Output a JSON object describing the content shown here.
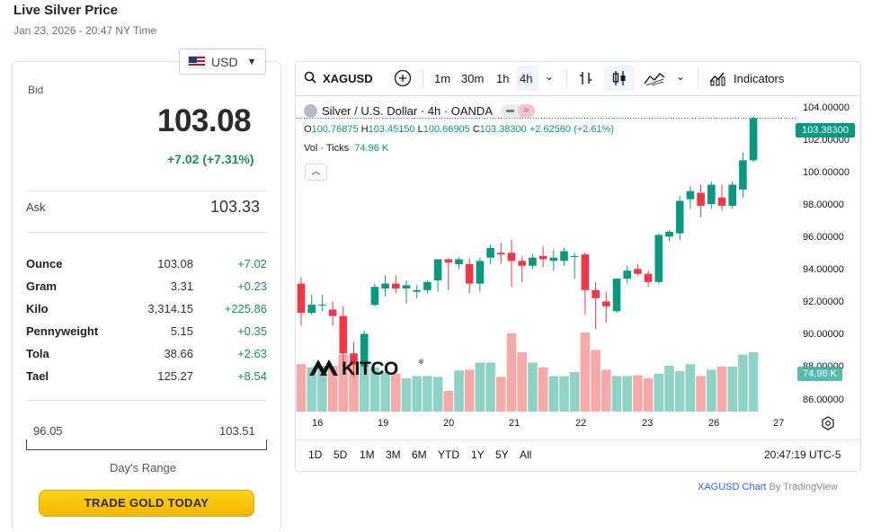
{
  "header": {
    "title": "Live Silver Price",
    "timestamp": "Jan 23, 2026 - 20:47 NY Time"
  },
  "currency": {
    "selected": "USD"
  },
  "quote": {
    "bid_label": "Bid",
    "bid": "103.08",
    "change": "+7.02 (+7.31%)",
    "ask_label": "Ask",
    "ask": "103.33"
  },
  "units": [
    {
      "unit": "Ounce",
      "price": "103.08",
      "change": "+7.02"
    },
    {
      "unit": "Gram",
      "price": "3.31",
      "change": "+0.23"
    },
    {
      "unit": "Kilo",
      "price": "3,314.15",
      "change": "+225.86"
    },
    {
      "unit": "Pennyweight",
      "price": "5.15",
      "change": "+0.35"
    },
    {
      "unit": "Tola",
      "price": "38.66",
      "change": "+2.63"
    },
    {
      "unit": "Tael",
      "price": "125.27",
      "change": "+8.54"
    }
  ],
  "day_range": {
    "low": "96.05",
    "high": "103.51",
    "label": "Day's Range"
  },
  "cta": {
    "label": "TRADE GOLD TODAY"
  },
  "chart_widget": {
    "symbol": "XAGUSD",
    "timeframes": [
      "1m",
      "30m",
      "1h",
      "4h"
    ],
    "active_timeframe": "4h",
    "indicators_label": "Indicators",
    "title_line": "Silver / U.S. Dollar · 4h · OANDA",
    "ohlc": {
      "o_label": "O",
      "o": "100.76875",
      "h_label": "H",
      "h": "103.45150",
      "l_label": "L",
      "l": "100.66905",
      "c_label": "C",
      "c": "103.38300",
      "change": "+2.62560 (+2.61%)"
    },
    "volume_label": "Vol · Ticks",
    "volume_value": "74.96 K",
    "last_price": "103.38300",
    "volume_badge": "74.96 K",
    "ranges": [
      "1D",
      "5D",
      "1M",
      "3M",
      "6M",
      "YTD",
      "1Y",
      "5Y",
      "All"
    ],
    "clock": "20:47:19 UTC-5",
    "watermark": "KITCO",
    "attribution_link": "XAGUSD Chart",
    "attribution_text": " By TradingView",
    "up_color": "#089981",
    "down_color": "#f23645"
  },
  "chart_data": {
    "type": "candlestick",
    "price_ticks": [
      "104.00000",
      "102.00000",
      "100.00000",
      "98.00000",
      "96.00000",
      "94.00000",
      "92.00000",
      "90.00000",
      "88.00000",
      "86.00000"
    ],
    "date_ticks": [
      "16",
      "19",
      "20",
      "21",
      "22",
      "23",
      "26",
      "27"
    ],
    "ylim": [
      85.2,
      104.7
    ],
    "candles": [
      {
        "o": 93.2,
        "h": 93.6,
        "l": 90.6,
        "c": 91.4,
        "v": 60
      },
      {
        "o": 91.4,
        "h": 92.5,
        "l": 91.3,
        "c": 91.9,
        "v": 56
      },
      {
        "o": 91.9,
        "h": 92.5,
        "l": 91.5,
        "c": 91.9,
        "v": 58
      },
      {
        "o": 91.6,
        "h": 92.1,
        "l": 90.6,
        "c": 91.2,
        "v": 58
      },
      {
        "o": 91.2,
        "h": 91.8,
        "l": 88.0,
        "c": 88.9,
        "v": 72
      },
      {
        "o": 88.9,
        "h": 89.6,
        "l": 87.4,
        "c": 88.2,
        "v": 65
      },
      {
        "o": 88.1,
        "h": 90.3,
        "l": 87.9,
        "c": 90.1,
        "v": 58
      },
      {
        "o": 91.9,
        "h": 93.2,
        "l": 91.8,
        "c": 93.0,
        "v": 56
      },
      {
        "o": 92.9,
        "h": 93.7,
        "l": 92.4,
        "c": 93.2,
        "v": 50
      },
      {
        "o": 93.2,
        "h": 93.7,
        "l": 92.6,
        "c": 92.9,
        "v": 48
      },
      {
        "o": 92.9,
        "h": 93.4,
        "l": 92.0,
        "c": 93.1,
        "v": 42
      },
      {
        "o": 92.7,
        "h": 93.1,
        "l": 92.3,
        "c": 92.8,
        "v": 45
      },
      {
        "o": 92.8,
        "h": 93.4,
        "l": 92.6,
        "c": 93.3,
        "v": 45
      },
      {
        "o": 93.4,
        "h": 94.6,
        "l": 92.7,
        "c": 94.7,
        "v": 44
      },
      {
        "o": 94.7,
        "h": 94.8,
        "l": 92.8,
        "c": 94.5,
        "v": 26
      },
      {
        "o": 94.4,
        "h": 94.8,
        "l": 94.1,
        "c": 94.7,
        "v": 52
      },
      {
        "o": 94.4,
        "h": 94.8,
        "l": 92.6,
        "c": 93.2,
        "v": 53
      },
      {
        "o": 93.2,
        "h": 94.8,
        "l": 92.7,
        "c": 94.6,
        "v": 62
      },
      {
        "o": 94.8,
        "h": 95.6,
        "l": 94.4,
        "c": 95.4,
        "v": 62
      },
      {
        "o": 95.1,
        "h": 95.7,
        "l": 94.4,
        "c": 95.0,
        "v": 44
      },
      {
        "o": 95.1,
        "h": 95.9,
        "l": 93.0,
        "c": 94.6,
        "v": 99
      },
      {
        "o": 94.6,
        "h": 94.9,
        "l": 93.3,
        "c": 94.3,
        "v": 75
      },
      {
        "o": 94.3,
        "h": 95.0,
        "l": 94.1,
        "c": 94.8,
        "v": 62
      },
      {
        "o": 94.9,
        "h": 95.5,
        "l": 94.2,
        "c": 94.7,
        "v": 56
      },
      {
        "o": 94.6,
        "h": 95.3,
        "l": 94.0,
        "c": 94.8,
        "v": 45
      },
      {
        "o": 94.6,
        "h": 95.4,
        "l": 94.3,
        "c": 95.2,
        "v": 45
      },
      {
        "o": 94.9,
        "h": 95.1,
        "l": 93.5,
        "c": 94.9,
        "v": 50
      },
      {
        "o": 95.0,
        "h": 95.1,
        "l": 91.3,
        "c": 92.8,
        "v": 100
      },
      {
        "o": 92.8,
        "h": 93.3,
        "l": 90.4,
        "c": 92.3,
        "v": 78
      },
      {
        "o": 92.1,
        "h": 92.7,
        "l": 90.8,
        "c": 91.8,
        "v": 53
      },
      {
        "o": 91.5,
        "h": 93.5,
        "l": 91.4,
        "c": 93.5,
        "v": 45
      },
      {
        "o": 93.5,
        "h": 94.3,
        "l": 93.2,
        "c": 94.0,
        "v": 45
      },
      {
        "o": 94.1,
        "h": 94.4,
        "l": 93.7,
        "c": 93.8,
        "v": 46
      },
      {
        "o": 93.8,
        "h": 94.0,
        "l": 93.0,
        "c": 93.3,
        "v": 42
      },
      {
        "o": 93.3,
        "h": 96.3,
        "l": 93.2,
        "c": 96.2,
        "v": 48
      },
      {
        "o": 96.1,
        "h": 96.5,
        "l": 95.8,
        "c": 96.4,
        "v": 58
      },
      {
        "o": 96.3,
        "h": 98.6,
        "l": 95.9,
        "c": 98.3,
        "v": 51
      },
      {
        "o": 98.4,
        "h": 99.2,
        "l": 97.8,
        "c": 98.9,
        "v": 60
      },
      {
        "o": 98.8,
        "h": 99.3,
        "l": 97.3,
        "c": 98.0,
        "v": 45
      },
      {
        "o": 98.1,
        "h": 99.5,
        "l": 97.8,
        "c": 99.3,
        "v": 53
      },
      {
        "o": 98.5,
        "h": 99.3,
        "l": 97.7,
        "c": 98.0,
        "v": 57
      },
      {
        "o": 98.0,
        "h": 99.5,
        "l": 97.8,
        "c": 99.3,
        "v": 57
      },
      {
        "o": 99.0,
        "h": 101.3,
        "l": 98.5,
        "c": 100.8,
        "v": 72
      },
      {
        "o": 100.8,
        "h": 103.5,
        "l": 100.7,
        "c": 103.4,
        "v": 75
      }
    ]
  }
}
